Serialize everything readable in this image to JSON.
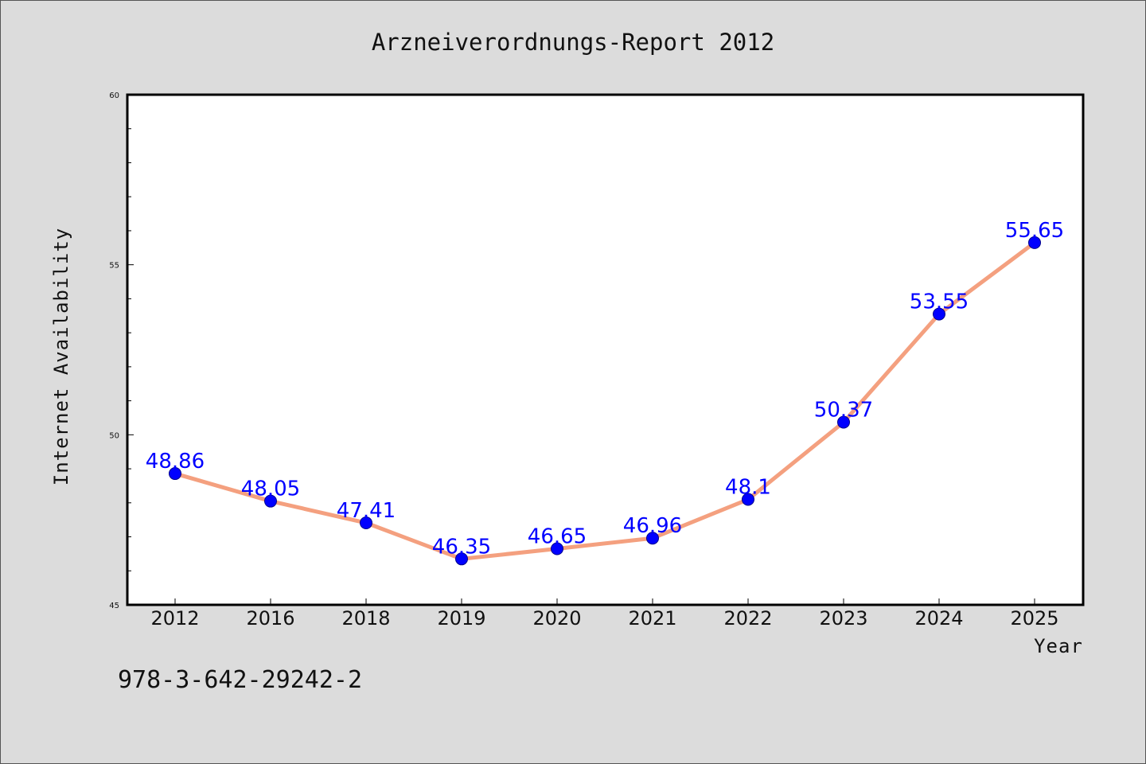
{
  "figure": {
    "background": "#dcdcdc",
    "footnote": "978-3-642-29242-2"
  },
  "chart_data": {
    "type": "line",
    "title": "Arzneiverordnungs-Report 2012",
    "xlabel": "Year",
    "ylabel": "Internet Availability",
    "categories": [
      "2012",
      "2016",
      "2018",
      "2019",
      "2020",
      "2021",
      "2022",
      "2023",
      "2024",
      "2025"
    ],
    "series": [
      {
        "values": [
          48.86,
          48.05,
          47.41,
          46.35,
          46.65,
          46.96,
          48.1,
          50.37,
          53.55,
          55.65
        ],
        "labels": [
          "48.86",
          "48.05",
          "47.41",
          "46.35",
          "46.65",
          "46.96",
          "48.1",
          "50.37",
          "53.55",
          "55.65"
        ],
        "line_color": "#f4a07f",
        "marker_color": "#0000ff"
      }
    ],
    "ylim": [
      45,
      60
    ],
    "yticks": [
      "45",
      "50",
      "55",
      "60"
    ],
    "y_minor_step": 1,
    "grid": false,
    "legend": "none",
    "plot_background": "#ffffff",
    "data_label_color": "#0000ff"
  }
}
